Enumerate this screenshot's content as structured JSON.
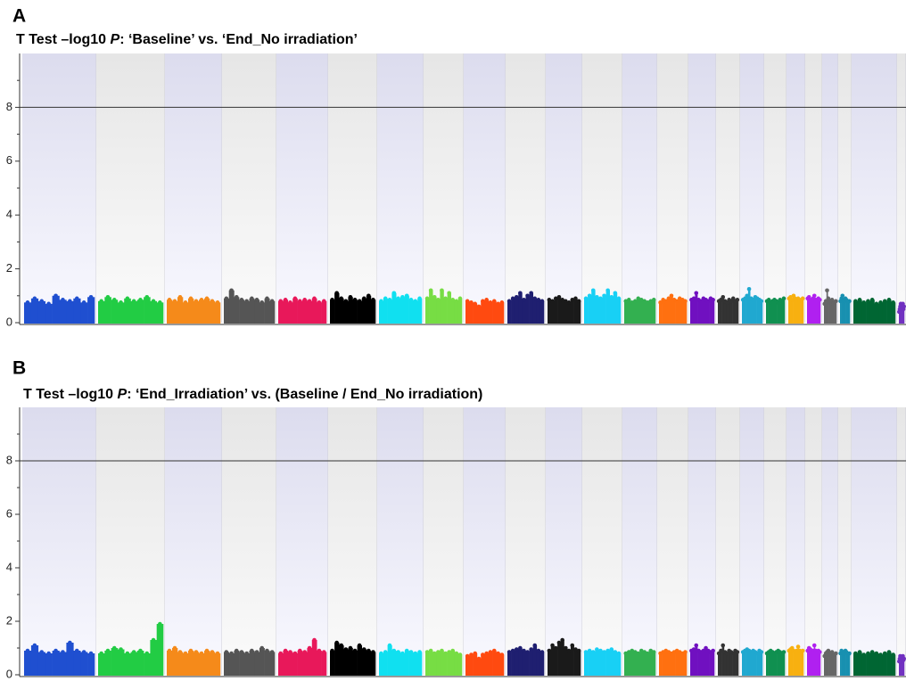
{
  "chart_data": [
    {
      "type": "manhattan",
      "panel_label": "A",
      "title": [
        "T Test –log10 ",
        "P",
        ": ‘Baseline’ vs. ‘End_No irradiation’"
      ],
      "title_italic": [
        false,
        true,
        false
      ],
      "xlim": [
        0,
        991
      ],
      "ylim": [
        0,
        10
      ],
      "yticks": [
        0,
        2,
        4,
        6,
        8
      ],
      "yminor": [
        1,
        3,
        5,
        7,
        9
      ],
      "threshold": 8,
      "band_edges": [
        0,
        83,
        160,
        224,
        285,
        343,
        398,
        450,
        495,
        542,
        587,
        628,
        673,
        712,
        747,
        778,
        805,
        832,
        857,
        878,
        897,
        915,
        930,
        981,
        991
      ],
      "series": [
        {
          "color": "#1f4fd0",
          "values": [
            0.75,
            0.9,
            0.8,
            0.7,
            1.0,
            0.85,
            0.8,
            0.9,
            0.75,
            0.95
          ]
        },
        {
          "color": "#22cc44",
          "values": [
            0.8,
            0.95,
            0.85,
            0.75,
            0.9,
            0.8,
            0.85,
            0.95,
            0.8,
            0.75
          ]
        },
        {
          "color": "#f58a1a",
          "values": [
            0.85,
            0.8,
            0.95,
            0.75,
            0.9,
            0.8,
            0.85,
            0.9,
            0.8,
            0.75
          ]
        },
        {
          "color": "#555555",
          "values": [
            0.9,
            1.2,
            0.95,
            0.85,
            0.8,
            0.9,
            0.85,
            0.75,
            0.9,
            0.8
          ]
        },
        {
          "color": "#e8185a",
          "values": [
            0.8,
            0.85,
            0.75,
            0.9,
            0.8,
            0.85,
            0.8,
            0.9,
            0.75,
            0.8
          ]
        },
        {
          "color": "#000000",
          "values": [
            0.85,
            1.1,
            0.9,
            0.8,
            0.95,
            0.85,
            0.8,
            0.9,
            1.0,
            0.85
          ]
        },
        {
          "color": "#10e0f0",
          "values": [
            0.8,
            0.9,
            0.85,
            1.1,
            0.9,
            0.95,
            1.0,
            0.85,
            0.8,
            0.9
          ]
        },
        {
          "color": "#77dd44",
          "values": [
            0.9,
            1.2,
            0.95,
            0.85,
            1.2,
            0.9,
            1.1,
            0.85,
            0.8,
            0.9
          ]
        },
        {
          "color": "#ff4a10",
          "values": [
            0.8,
            0.75,
            0.7,
            0.6,
            0.8,
            0.85,
            0.75,
            0.8,
            0.7,
            0.75
          ]
        },
        {
          "color": "#1f1f70",
          "values": [
            0.8,
            0.9,
            0.95,
            1.1,
            0.85,
            1.0,
            1.1,
            0.9,
            0.85,
            0.8
          ]
        },
        {
          "color": "#1a1a1a",
          "values": [
            0.85,
            0.8,
            0.9,
            0.95,
            0.85,
            0.8,
            0.75,
            0.85,
            0.9,
            0.8
          ]
        },
        {
          "color": "#18d0f5",
          "values": [
            0.9,
            1.0,
            1.2,
            0.95,
            0.9,
            1.0,
            1.2,
            0.95,
            1.1,
            0.9
          ]
        },
        {
          "color": "#33b050",
          "values": [
            0.8,
            0.85,
            0.75,
            0.8,
            0.9,
            0.85,
            0.8,
            0.75,
            0.8,
            0.85
          ]
        },
        {
          "color": "#ff7010",
          "values": [
            0.75,
            0.85,
            0.8,
            0.9,
            1.0,
            0.85,
            0.8,
            0.9,
            0.85,
            0.8
          ]
        },
        {
          "color": "#7010c0",
          "values": [
            0.85,
            0.9,
            1.1,
            0.85,
            0.8,
            0.9,
            0.85,
            0.8,
            0.9,
            0.85
          ]
        },
        {
          "color": "#333333",
          "values": [
            0.8,
            0.85,
            0.95,
            0.8,
            0.75,
            0.85,
            0.8,
            0.9,
            0.8,
            0.85
          ]
        },
        {
          "color": "#20a8d0",
          "values": [
            0.85,
            0.9,
            1.0,
            1.25,
            0.9,
            0.85,
            0.95,
            0.9,
            0.85,
            0.8
          ]
        },
        {
          "color": "#109050",
          "values": [
            0.8,
            0.85,
            0.75,
            0.8,
            0.85,
            0.8,
            0.75,
            0.85,
            0.8,
            0.9
          ]
        },
        {
          "color": "#f8b010",
          "values": [
            0.9,
            0.95,
            0.85,
            1.0,
            0.9,
            0.85,
            0.9,
            0.8,
            0.85,
            0.9
          ]
        },
        {
          "color": "#b020f0",
          "values": [
            0.9,
            0.95,
            0.85,
            0.8,
            0.9,
            1.0,
            0.85,
            0.8,
            0.9,
            0.85
          ]
        },
        {
          "color": "#666666",
          "values": [
            0.7,
            0.8,
            1.2,
            0.9,
            0.75,
            0.8,
            0.85,
            0.7,
            0.75,
            0.8
          ]
        },
        {
          "color": "#1890b0",
          "values": [
            0.8,
            0.9,
            1.0,
            0.85,
            0.8,
            0.9,
            0.85,
            0.8,
            0.75,
            0.8
          ]
        },
        {
          "color": "#006633",
          "values": [
            0.8,
            0.85,
            0.75,
            0.8,
            0.85,
            0.7,
            0.75,
            0.8,
            0.85,
            0.75
          ]
        },
        {
          "color": "#7030c0",
          "values": [
            0.4,
            0.5,
            0.6,
            0.7,
            0.6,
            0.5,
            0.6,
            0.7,
            0.5,
            0.6
          ]
        }
      ]
    },
    {
      "type": "manhattan",
      "panel_label": "B",
      "title": [
        "T Test –log10 ",
        "P",
        ": ‘End_Irradiation’ vs. (Baseline / End_No irradiation)"
      ],
      "title_italic": [
        false,
        true,
        false
      ],
      "xlim": [
        0,
        991
      ],
      "ylim": [
        0,
        10
      ],
      "yticks": [
        0,
        2,
        4,
        6,
        8
      ],
      "yminor": [
        1,
        3,
        5,
        7,
        9
      ],
      "threshold": 8,
      "band_edges": [
        0,
        83,
        160,
        224,
        285,
        343,
        398,
        450,
        495,
        542,
        587,
        628,
        673,
        712,
        747,
        778,
        805,
        832,
        857,
        878,
        897,
        915,
        930,
        981,
        991
      ],
      "series": [
        {
          "color": "#1f4fd0",
          "values": [
            0.9,
            1.1,
            0.85,
            0.8,
            0.9,
            0.85,
            1.2,
            0.9,
            0.85,
            0.8
          ]
        },
        {
          "color": "#22cc44",
          "values": [
            0.8,
            0.9,
            1.0,
            0.95,
            0.8,
            0.85,
            0.9,
            0.8,
            1.3,
            1.9
          ]
        },
        {
          "color": "#f58a1a",
          "values": [
            0.9,
            1.0,
            0.85,
            0.8,
            0.9,
            0.85,
            0.8,
            0.9,
            0.85,
            0.8
          ]
        },
        {
          "color": "#555555",
          "values": [
            0.85,
            0.8,
            0.9,
            0.85,
            0.8,
            0.9,
            0.85,
            1.0,
            0.9,
            0.85
          ]
        },
        {
          "color": "#e8185a",
          "values": [
            0.8,
            0.9,
            0.85,
            0.8,
            0.9,
            0.85,
            1.0,
            1.3,
            0.9,
            0.85
          ]
        },
        {
          "color": "#000000",
          "values": [
            0.9,
            1.2,
            1.1,
            0.95,
            1.0,
            0.9,
            1.1,
            0.95,
            0.9,
            0.85
          ]
        },
        {
          "color": "#10e0f0",
          "values": [
            0.8,
            0.85,
            1.1,
            0.9,
            0.85,
            0.8,
            0.9,
            0.85,
            0.8,
            0.85
          ]
        },
        {
          "color": "#77dd44",
          "values": [
            0.85,
            0.9,
            0.8,
            0.85,
            0.9,
            0.8,
            0.85,
            0.9,
            0.8,
            0.75
          ]
        },
        {
          "color": "#ff4a10",
          "values": [
            0.7,
            0.75,
            0.8,
            0.6,
            0.75,
            0.8,
            0.85,
            0.9,
            0.8,
            0.75
          ]
        },
        {
          "color": "#1f1f70",
          "values": [
            0.85,
            0.9,
            0.95,
            1.0,
            0.9,
            0.85,
            0.95,
            1.1,
            0.9,
            0.85
          ]
        },
        {
          "color": "#1a1a1a",
          "values": [
            0.9,
            1.1,
            1.0,
            1.2,
            1.3,
            1.0,
            0.9,
            1.1,
            0.95,
            0.9
          ]
        },
        {
          "color": "#18d0f5",
          "values": [
            0.85,
            0.9,
            0.85,
            0.95,
            0.9,
            0.85,
            0.9,
            0.95,
            0.85,
            0.8
          ]
        },
        {
          "color": "#33b050",
          "values": [
            0.8,
            0.85,
            0.9,
            0.85,
            0.8,
            0.9,
            0.85,
            0.8,
            0.9,
            0.85
          ]
        },
        {
          "color": "#ff7010",
          "values": [
            0.8,
            0.85,
            0.9,
            0.85,
            0.8,
            0.85,
            0.9,
            0.85,
            0.8,
            0.85
          ]
        },
        {
          "color": "#7010c0",
          "values": [
            0.9,
            0.95,
            1.1,
            0.9,
            0.85,
            0.9,
            1.0,
            0.9,
            0.85,
            0.9
          ]
        },
        {
          "color": "#333333",
          "values": [
            0.8,
            0.9,
            1.1,
            0.85,
            0.8,
            0.9,
            0.85,
            0.8,
            0.9,
            0.85
          ]
        },
        {
          "color": "#20a8d0",
          "values": [
            0.85,
            0.9,
            0.95,
            0.9,
            0.85,
            0.9,
            0.85,
            0.8,
            0.9,
            0.85
          ]
        },
        {
          "color": "#109050",
          "values": [
            0.8,
            0.85,
            0.9,
            0.85,
            0.8,
            0.85,
            0.9,
            0.85,
            0.8,
            0.85
          ]
        },
        {
          "color": "#f8b010",
          "values": [
            0.9,
            0.95,
            1.0,
            0.9,
            0.85,
            0.9,
            1.05,
            0.9,
            0.85,
            0.9
          ]
        },
        {
          "color": "#b020f0",
          "values": [
            0.9,
            1.0,
            0.95,
            0.85,
            0.9,
            1.1,
            0.9,
            0.85,
            0.9,
            0.85
          ]
        },
        {
          "color": "#666666",
          "values": [
            0.7,
            0.8,
            0.85,
            0.9,
            0.75,
            0.8,
            0.85,
            0.7,
            0.75,
            0.8
          ]
        },
        {
          "color": "#1890b0",
          "values": [
            0.8,
            0.9,
            0.85,
            0.8,
            0.85,
            0.9,
            0.85,
            0.8,
            0.75,
            0.8
          ]
        },
        {
          "color": "#006633",
          "values": [
            0.8,
            0.85,
            0.75,
            0.8,
            0.85,
            0.8,
            0.75,
            0.8,
            0.85,
            0.75
          ]
        },
        {
          "color": "#7030c0",
          "values": [
            0.5,
            0.6,
            0.7,
            0.6,
            0.65,
            0.5,
            0.6,
            0.7,
            0.55,
            0.6
          ]
        }
      ]
    }
  ]
}
